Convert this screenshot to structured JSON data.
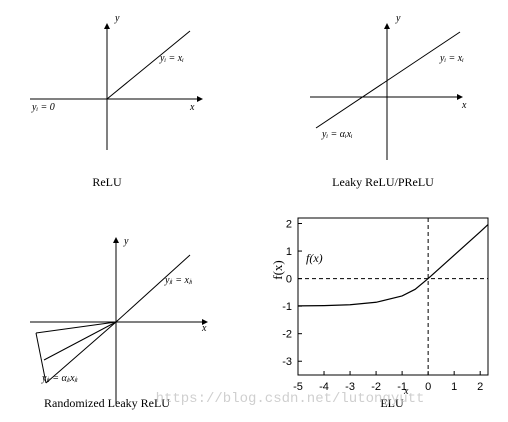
{
  "diagrams": [
    {
      "caption": "ReLU",
      "x_axis": "x",
      "y_axis": "y",
      "labels": [
        "yᵢ = xᵢ",
        "yᵢ = 0"
      ]
    },
    {
      "caption": "Leaky ReLU/PReLU",
      "x_axis": "x",
      "y_axis": "y",
      "labels": [
        "yᵢ = xᵢ",
        "yᵢ = αᵢxᵢ"
      ]
    },
    {
      "caption": "Randomized Leaky ReLU",
      "x_axis": "x",
      "y_axis": "y",
      "labels": [
        "yⱼᵢ = xⱼᵢ",
        "yⱼᵢ = αⱼᵢxⱼᵢ"
      ]
    }
  ],
  "chart_data": {
    "type": "line",
    "title": "ELU",
    "xlabel": "x",
    "ylabel": "f(x)",
    "annotation": "f(x)",
    "x": [
      -5,
      -4,
      -3,
      -2,
      -1,
      -0.5,
      0,
      1,
      2,
      2.3
    ],
    "series": [
      {
        "name": "ELU",
        "color": "#000000",
        "values": [
          -0.99,
          -0.98,
          -0.95,
          -0.86,
          -0.63,
          -0.39,
          0,
          0.85,
          1.7,
          1.96
        ]
      }
    ],
    "xlim": [
      -5,
      2.3
    ],
    "ylim": [
      -3.5,
      2.2
    ],
    "xticks": [
      -5,
      -4,
      -3,
      -2,
      -1,
      0,
      1,
      2
    ],
    "yticks": [
      -3,
      -2,
      -1,
      0,
      1,
      2
    ]
  },
  "watermark": "https://blog.csdn.net/lutongyutt"
}
